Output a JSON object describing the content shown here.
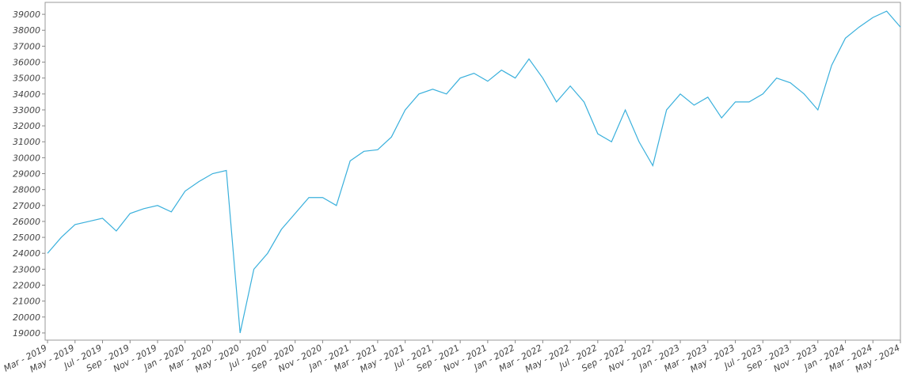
{
  "chart_data": {
    "type": "line",
    "color": "#3ab0dc",
    "x": [
      "2019-03",
      "2019-04",
      "2019-05",
      "2019-06",
      "2019-07",
      "2019-08",
      "2019-09",
      "2019-10",
      "2019-11",
      "2019-12",
      "2020-01",
      "2020-02",
      "2020-03",
      "2020-04",
      "2020-05",
      "2020-06",
      "2020-07",
      "2020-08",
      "2020-09",
      "2020-10",
      "2020-11",
      "2020-12",
      "2021-01",
      "2021-02",
      "2021-03",
      "2021-04",
      "2021-05",
      "2021-06",
      "2021-07",
      "2021-08",
      "2021-09",
      "2021-10",
      "2021-11",
      "2021-12",
      "2022-01",
      "2022-02",
      "2022-03",
      "2022-04",
      "2022-05",
      "2022-06",
      "2022-07",
      "2022-08",
      "2022-09",
      "2022-10",
      "2022-11",
      "2022-12",
      "2023-01",
      "2023-02",
      "2023-03",
      "2023-04",
      "2023-05",
      "2023-06",
      "2023-07",
      "2023-08",
      "2023-09",
      "2023-10",
      "2023-11",
      "2023-12",
      "2024-01",
      "2024-02",
      "2024-03",
      "2024-04",
      "2024-05"
    ],
    "values": [
      24000,
      25000,
      25800,
      26000,
      26200,
      25400,
      26500,
      26800,
      27000,
      26600,
      27900,
      28500,
      29000,
      29200,
      19000,
      23000,
      24000,
      25500,
      26500,
      27500,
      27500,
      27000,
      29800,
      30400,
      30500,
      31300,
      33000,
      34000,
      34300,
      34000,
      35000,
      35300,
      34800,
      35500,
      35000,
      36200,
      35000,
      33500,
      34500,
      33500,
      31500,
      31000,
      33000,
      31000,
      29500,
      33000,
      34000,
      33300,
      33800,
      32500,
      33500,
      33500,
      34000,
      35000,
      34700,
      34000,
      33000,
      35800,
      37500,
      38200,
      38800,
      39200,
      38200
    ],
    "xlim": [
      "2019-03",
      "2024-05"
    ],
    "xticks": [
      {
        "value": "2019-03",
        "label": "Mar - 2019"
      },
      {
        "value": "2019-05",
        "label": "May - 2019"
      },
      {
        "value": "2019-07",
        "label": "Jul - 2019"
      },
      {
        "value": "2019-09",
        "label": "Sep - 2019"
      },
      {
        "value": "2019-11",
        "label": "Nov - 2019"
      },
      {
        "value": "2020-01",
        "label": "Jan - 2020"
      },
      {
        "value": "2020-03",
        "label": "Mar - 2020"
      },
      {
        "value": "2020-05",
        "label": "May - 2020"
      },
      {
        "value": "2020-07",
        "label": "Jul - 2020"
      },
      {
        "value": "2020-09",
        "label": "Sep - 2020"
      },
      {
        "value": "2020-11",
        "label": "Nov - 2020"
      },
      {
        "value": "2021-01",
        "label": "Jan - 2021"
      },
      {
        "value": "2021-03",
        "label": "Mar - 2021"
      },
      {
        "value": "2021-05",
        "label": "May - 2021"
      },
      {
        "value": "2021-07",
        "label": "Jul - 2021"
      },
      {
        "value": "2021-09",
        "label": "Sep - 2021"
      },
      {
        "value": "2021-11",
        "label": "Nov - 2021"
      },
      {
        "value": "2022-01",
        "label": "Jan - 2022"
      },
      {
        "value": "2022-03",
        "label": "Mar - 2022"
      },
      {
        "value": "2022-05",
        "label": "May - 2022"
      },
      {
        "value": "2022-07",
        "label": "Jul - 2022"
      },
      {
        "value": "2022-09",
        "label": "Sep - 2022"
      },
      {
        "value": "2022-11",
        "label": "Nov - 2022"
      },
      {
        "value": "2023-01",
        "label": "Jan - 2023"
      },
      {
        "value": "2023-03",
        "label": "Mar - 2023"
      },
      {
        "value": "2023-05",
        "label": "May - 2023"
      },
      {
        "value": "2023-07",
        "label": "Jul - 2023"
      },
      {
        "value": "2023-09",
        "label": "Sep - 2023"
      },
      {
        "value": "2023-11",
        "label": "Nov - 2023"
      },
      {
        "value": "2024-01",
        "label": "Jan - 2024"
      },
      {
        "value": "2024-03",
        "label": "Mar - 2024"
      },
      {
        "value": "2024-05",
        "label": "May - 2024"
      }
    ],
    "ylim": [
      18550,
      39750
    ],
    "yticks": [
      19000,
      20000,
      21000,
      22000,
      23000,
      24000,
      25000,
      26000,
      27000,
      28000,
      29000,
      30000,
      31000,
      32000,
      33000,
      34000,
      35000,
      36000,
      37000,
      38000,
      39000
    ]
  }
}
